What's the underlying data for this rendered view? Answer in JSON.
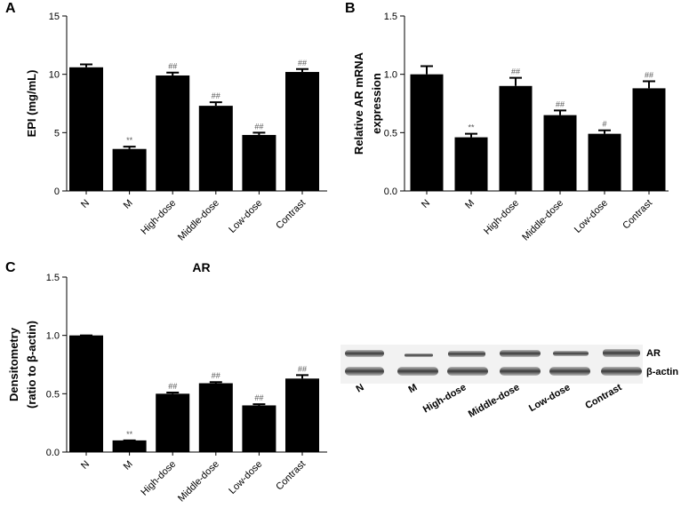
{
  "chart_data": [
    {
      "type": "bar",
      "panel": "A",
      "ylabel": [
        "EPI (mg/mL)"
      ],
      "categories": [
        "N",
        "M",
        "High-dose",
        "Middle-dose",
        "Low-dose",
        "Contrast"
      ],
      "values": [
        10.6,
        3.6,
        9.9,
        7.3,
        4.8,
        10.2
      ],
      "errors": [
        0.25,
        0.2,
        0.25,
        0.3,
        0.2,
        0.25
      ],
      "annotations": [
        null,
        "**",
        "##",
        "##",
        "##",
        "##"
      ],
      "color": "#000000",
      "ylim": [
        0,
        15
      ],
      "yticks": [
        0,
        5,
        10,
        15
      ]
    },
    {
      "type": "bar",
      "panel": "B",
      "ylabel": [
        "Relative AR mRNA",
        "expression"
      ],
      "categories": [
        "N",
        "M",
        "High-dose",
        "Middle-dose",
        "Low-dose",
        "Contrast"
      ],
      "values": [
        1.0,
        0.46,
        0.9,
        0.65,
        0.49,
        0.88
      ],
      "errors": [
        0.07,
        0.03,
        0.07,
        0.04,
        0.03,
        0.06
      ],
      "annotations": [
        null,
        "**",
        "##",
        "##",
        "#",
        "##"
      ],
      "color": "#000000",
      "ylim": [
        0,
        1.5
      ],
      "yticks": [
        {
          "value": 0,
          "label": "0.0"
        },
        0.5,
        {
          "value": 1,
          "label": "1.0"
        },
        1.5
      ]
    },
    {
      "type": "bar",
      "panel": "C",
      "title": "AR",
      "ylabel": [
        "Densitometry",
        "(ratio to β-actin)"
      ],
      "categories": [
        "N",
        "M",
        "High-dose",
        "Middle-dose",
        "Low-dose",
        "Contrast"
      ],
      "values": [
        1.0,
        0.1,
        0.5,
        0.59,
        0.4,
        0.63
      ],
      "errors": [
        0,
        0,
        0.01,
        0.01,
        0.01,
        0.03
      ],
      "annotations": [
        null,
        "**",
        "##",
        "##",
        "##",
        "##"
      ],
      "color": "#000000",
      "ylim": [
        0,
        1.5
      ],
      "yticks": [
        {
          "value": 0,
          "label": "0.0"
        },
        0.5,
        {
          "value": 1,
          "label": "1.0"
        },
        1.5
      ]
    }
  ],
  "blot": {
    "bands": [
      "AR",
      "β-actin"
    ],
    "lanes": [
      "N",
      "M",
      "High-dose",
      "Middle-dose",
      "Low-dose",
      "Contrast"
    ]
  }
}
